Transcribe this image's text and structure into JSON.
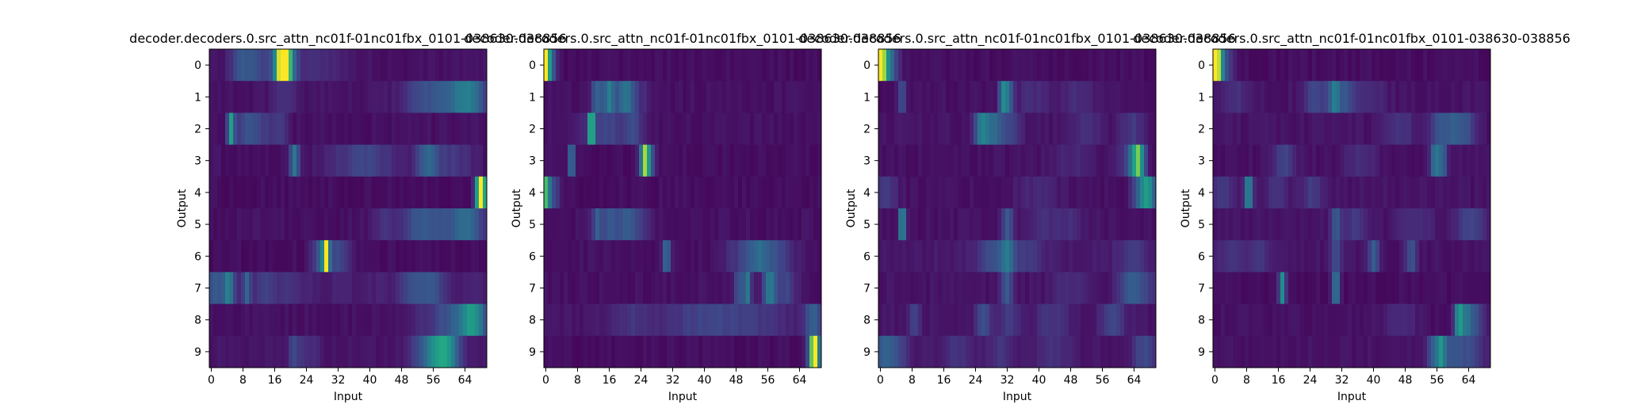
{
  "figure": {
    "background": "#ffffff"
  },
  "chart_data": [
    {
      "type": "heatmap",
      "title": "decoder.decoders.0.src_attn_nc01f-01nc01fbx_0101-038630-038856",
      "xlabel": "Input",
      "ylabel": "Output",
      "x_ticks": [
        0,
        8,
        16,
        24,
        32,
        40,
        48,
        56,
        64
      ],
      "y_ticks": [
        0,
        1,
        2,
        3,
        4,
        5,
        6,
        7,
        8,
        9
      ],
      "n_inputs": 70,
      "n_outputs": 10,
      "colormap": "viridis",
      "value_range": [
        0,
        1
      ],
      "rows": [
        {
          "peaks": [
            [
              18.5,
              0.9,
              1.5
            ],
            [
              20,
              0.3,
              1.5
            ],
            [
              7.5,
              0.2,
              2
            ],
            [
              10.5,
              0.15,
              2
            ],
            [
              14.5,
              0.12,
              3
            ],
            [
              26,
              0.1,
              6
            ]
          ],
          "base": 0.03
        },
        {
          "peaks": [
            [
              54,
              0.2,
              4
            ],
            [
              62,
              0.25,
              4
            ],
            [
              66,
              0.3,
              3
            ],
            [
              19,
              0.1,
              2
            ]
          ],
          "base": 0.04
        },
        {
          "peaks": [
            [
              5.5,
              0.6,
              0.6
            ],
            [
              11.5,
              0.2,
              3
            ],
            [
              17.5,
              0.15,
              1.5
            ],
            [
              8.5,
              0.1,
              2
            ]
          ],
          "base": 0.03
        },
        {
          "peaks": [
            [
              21.5,
              0.45,
              0.8
            ],
            [
              39,
              0.2,
              6
            ],
            [
              55,
              0.3,
              2
            ],
            [
              61,
              0.15,
              4
            ]
          ],
          "base": 0.03
        },
        {
          "peaks": [
            [
              68.8,
              1.0,
              0.8
            ],
            [
              67.5,
              0.4,
              0.6
            ]
          ],
          "base": 0.02
        },
        {
          "peaks": [
            [
              56,
              0.25,
              5
            ],
            [
              65,
              0.35,
              3
            ],
            [
              44,
              0.12,
              2
            ],
            [
              52,
              0.1,
              2
            ]
          ],
          "base": 0.03
        },
        {
          "peaks": [
            [
              29.5,
              0.95,
              0.6
            ],
            [
              28,
              0.3,
              1.5
            ],
            [
              32,
              0.15,
              1.5
            ],
            [
              34,
              0.1,
              2
            ]
          ],
          "base": 0.02
        },
        {
          "peaks": [
            [
              2,
              0.25,
              3
            ],
            [
              5,
              0.3,
              0.8
            ],
            [
              9.5,
              0.3,
              0.6
            ],
            [
              14,
              0.15,
              2
            ],
            [
              20,
              0.1,
              2
            ],
            [
              51,
              0.2,
              2
            ],
            [
              56,
              0.25,
              2
            ]
          ],
          "base": 0.08
        },
        {
          "peaks": [
            [
              66.5,
              0.6,
              2.5
            ],
            [
              61,
              0.2,
              3
            ],
            [
              56,
              0.1,
              4
            ]
          ],
          "base": 0.03
        },
        {
          "peaks": [
            [
              59.5,
              0.6,
              2.5
            ],
            [
              55,
              0.3,
              3
            ],
            [
              21.5,
              0.2,
              1
            ],
            [
              25,
              0.1,
              2
            ]
          ],
          "base": 0.04
        }
      ]
    },
    {
      "type": "heatmap",
      "title": "decoder.decoders.0.src_attn_nc01f-01nc01fbx_0101-038630-038856",
      "xlabel": "Input",
      "ylabel": "Output",
      "x_ticks": [
        0,
        8,
        16,
        24,
        32,
        40,
        48,
        56,
        64
      ],
      "y_ticks": [
        0,
        1,
        2,
        3,
        4,
        5,
        6,
        7,
        8,
        9
      ],
      "n_inputs": 70,
      "n_outputs": 10,
      "colormap": "viridis",
      "value_range": [
        0,
        1
      ],
      "rows": [
        {
          "peaks": [
            [
              0.5,
              1.0,
              0.7
            ],
            [
              2,
              0.3,
              1
            ]
          ],
          "base": 0.02
        },
        {
          "peaks": [
            [
              13.5,
              0.35,
              1
            ],
            [
              16.5,
              0.45,
              1
            ],
            [
              20.5,
              0.3,
              1.5
            ],
            [
              22,
              0.15,
              3
            ]
          ],
          "base": 0.03
        },
        {
          "peaks": [
            [
              12,
              0.75,
              0.6
            ],
            [
              16,
              0.2,
              4
            ],
            [
              22.5,
              0.2,
              1.5
            ]
          ],
          "base": 0.03
        },
        {
          "peaks": [
            [
              7,
              0.45,
              0.6
            ],
            [
              25.5,
              0.8,
              0.9
            ],
            [
              27,
              0.2,
              1
            ]
          ],
          "base": 0.02
        },
        {
          "peaks": [
            [
              0.5,
              0.6,
              0.7
            ],
            [
              2,
              0.25,
              1.5
            ]
          ],
          "base": 0.02
        },
        {
          "peaks": [
            [
              13.5,
              0.3,
              1
            ],
            [
              17,
              0.3,
              1.5
            ],
            [
              21,
              0.25,
              1.5
            ],
            [
              24,
              0.15,
              2
            ]
          ],
          "base": 0.03
        },
        {
          "peaks": [
            [
              31,
              0.45,
              0.6
            ],
            [
              54,
              0.3,
              2.5
            ],
            [
              59,
              0.2,
              3
            ],
            [
              49,
              0.12,
              3
            ]
          ],
          "base": 0.03
        },
        {
          "peaks": [
            [
              49.5,
              0.3,
              1
            ],
            [
              51.5,
              0.4,
              0.6
            ],
            [
              57,
              0.45,
              1.2
            ],
            [
              61,
              0.2,
              2
            ]
          ],
          "base": 0.03
        },
        {
          "peaks": [
            [
              40,
              0.15,
              8
            ],
            [
              53,
              0.1,
              8
            ],
            [
              68,
              0.3,
              1.5
            ],
            [
              22,
              0.1,
              4
            ]
          ],
          "base": 0.05
        },
        {
          "peaks": [
            [
              68.5,
              0.9,
              0.8
            ],
            [
              67.3,
              0.4,
              0.7
            ]
          ],
          "base": 0.02
        }
      ]
    },
    {
      "type": "heatmap",
      "title": "decoder.decoders.0.src_attn_nc01f-01nc01fbx_0101-038630-038856",
      "xlabel": "Input",
      "ylabel": "Output",
      "x_ticks": [
        0,
        8,
        16,
        24,
        32,
        40,
        48,
        56,
        64
      ],
      "y_ticks": [
        0,
        1,
        2,
        3,
        4,
        5,
        6,
        7,
        8,
        9
      ],
      "n_inputs": 70,
      "n_outputs": 10,
      "colormap": "viridis",
      "value_range": [
        0,
        1
      ],
      "rows": [
        {
          "peaks": [
            [
              0.5,
              0.95,
              0.8
            ],
            [
              2,
              0.4,
              1.2
            ],
            [
              3.5,
              0.2,
              1.5
            ]
          ],
          "base": 0.02
        },
        {
          "peaks": [
            [
              6,
              0.3,
              0.6
            ],
            [
              31.5,
              0.5,
              0.8
            ],
            [
              33,
              0.3,
              0.8
            ],
            [
              39,
              0.1,
              3
            ],
            [
              50,
              0.1,
              3
            ]
          ],
          "base": 0.03
        },
        {
          "peaks": [
            [
              26,
              0.45,
              1.2
            ],
            [
              29,
              0.35,
              1.5
            ],
            [
              33,
              0.2,
              2
            ],
            [
              52,
              0.1,
              3
            ],
            [
              64,
              0.15,
              2
            ]
          ],
          "base": 0.04
        },
        {
          "peaks": [
            [
              65.5,
              0.7,
              1.2
            ],
            [
              63.5,
              0.2,
              2
            ],
            [
              49,
              0.08,
              4
            ]
          ],
          "base": 0.03
        },
        {
          "peaks": [
            [
              68,
              0.5,
              1.5
            ],
            [
              66,
              0.25,
              1.5
            ],
            [
              2,
              0.15,
              2
            ],
            [
              40,
              0.08,
              4
            ]
          ],
          "base": 0.03
        },
        {
          "peaks": [
            [
              6,
              0.6,
              0.6
            ],
            [
              32.5,
              0.3,
              1
            ],
            [
              41,
              0.1,
              3
            ],
            [
              48,
              0.1,
              3
            ]
          ],
          "base": 0.03
        },
        {
          "peaks": [
            [
              29,
              0.2,
              3
            ],
            [
              32.5,
              0.3,
              1.5
            ],
            [
              38,
              0.12,
              3
            ],
            [
              64,
              0.12,
              3
            ]
          ],
          "base": 0.06
        },
        {
          "peaks": [
            [
              32.5,
              0.3,
              1
            ],
            [
              63,
              0.25,
              2
            ],
            [
              67,
              0.2,
              2
            ],
            [
              48,
              0.1,
              3
            ]
          ],
          "base": 0.04
        },
        {
          "peaks": [
            [
              9,
              0.2,
              1
            ],
            [
              26.5,
              0.25,
              1.2
            ],
            [
              33,
              0.15,
              2
            ],
            [
              44,
              0.12,
              3
            ],
            [
              59,
              0.2,
              2
            ]
          ],
          "base": 0.05
        },
        {
          "peaks": [
            [
              1.5,
              0.3,
              2
            ],
            [
              5,
              0.15,
              2
            ],
            [
              20,
              0.1,
              3
            ],
            [
              31,
              0.12,
              2
            ],
            [
              44,
              0.1,
              3
            ],
            [
              67,
              0.2,
              2
            ]
          ],
          "base": 0.05
        }
      ]
    },
    {
      "type": "heatmap",
      "title": "decoder.decoders.0.src_attn_nc01f-01nc01fbx_0101-038630-038856",
      "xlabel": "Input",
      "ylabel": "Output",
      "x_ticks": [
        0,
        8,
        16,
        24,
        32,
        40,
        48,
        56,
        64
      ],
      "y_ticks": [
        0,
        1,
        2,
        3,
        4,
        5,
        6,
        7,
        8,
        9
      ],
      "n_inputs": 70,
      "n_outputs": 10,
      "colormap": "viridis",
      "value_range": [
        0,
        1
      ],
      "rows": [
        {
          "peaks": [
            [
              0.5,
              0.9,
              0.7
            ],
            [
              1.8,
              0.5,
              0.8
            ],
            [
              3.5,
              0.2,
              1.5
            ]
          ],
          "base": 0.02
        },
        {
          "peaks": [
            [
              26,
              0.2,
              2
            ],
            [
              30.5,
              0.35,
              1
            ],
            [
              33,
              0.25,
              2
            ],
            [
              39,
              0.1,
              3
            ],
            [
              6,
              0.1,
              3
            ]
          ],
          "base": 0.04
        },
        {
          "peaks": [
            [
              57,
              0.25,
              1.5
            ],
            [
              60.5,
              0.3,
              1.5
            ],
            [
              64,
              0.25,
              1.5
            ],
            [
              47,
              0.12,
              3
            ]
          ],
          "base": 0.04
        },
        {
          "peaks": [
            [
              18,
              0.2,
              2
            ],
            [
              56,
              0.45,
              0.8
            ],
            [
              58,
              0.35,
              0.8
            ],
            [
              37,
              0.1,
              3
            ]
          ],
          "base": 0.03
        },
        {
          "peaks": [
            [
              9,
              0.5,
              0.8
            ],
            [
              2,
              0.15,
              2
            ],
            [
              16,
              0.12,
              2
            ],
            [
              25,
              0.15,
              2
            ]
          ],
          "base": 0.04
        },
        {
          "peaks": [
            [
              31,
              0.3,
              1
            ],
            [
              36,
              0.15,
              2
            ],
            [
              65,
              0.2,
              2.5
            ],
            [
              51,
              0.1,
              3
            ]
          ],
          "base": 0.04
        },
        {
          "peaks": [
            [
              5,
              0.12,
              3
            ],
            [
              12,
              0.12,
              2
            ],
            [
              31,
              0.25,
              1
            ],
            [
              40.5,
              0.3,
              1
            ],
            [
              50,
              0.25,
              1
            ]
          ],
          "base": 0.04
        },
        {
          "peaks": [
            [
              17.5,
              0.55,
              0.6
            ],
            [
              31,
              0.5,
              0.6
            ]
          ],
          "base": 0.02
        },
        {
          "peaks": [
            [
              62,
              0.55,
              0.8
            ],
            [
              64,
              0.35,
              1.2
            ],
            [
              66.5,
              0.2,
              1.5
            ],
            [
              47,
              0.1,
              3
            ]
          ],
          "base": 0.03
        },
        {
          "peaks": [
            [
              55.5,
              0.3,
              1
            ],
            [
              57.5,
              0.45,
              0.8
            ],
            [
              60,
              0.25,
              2
            ],
            [
              65,
              0.2,
              2.5
            ]
          ],
          "base": 0.04
        }
      ]
    }
  ]
}
